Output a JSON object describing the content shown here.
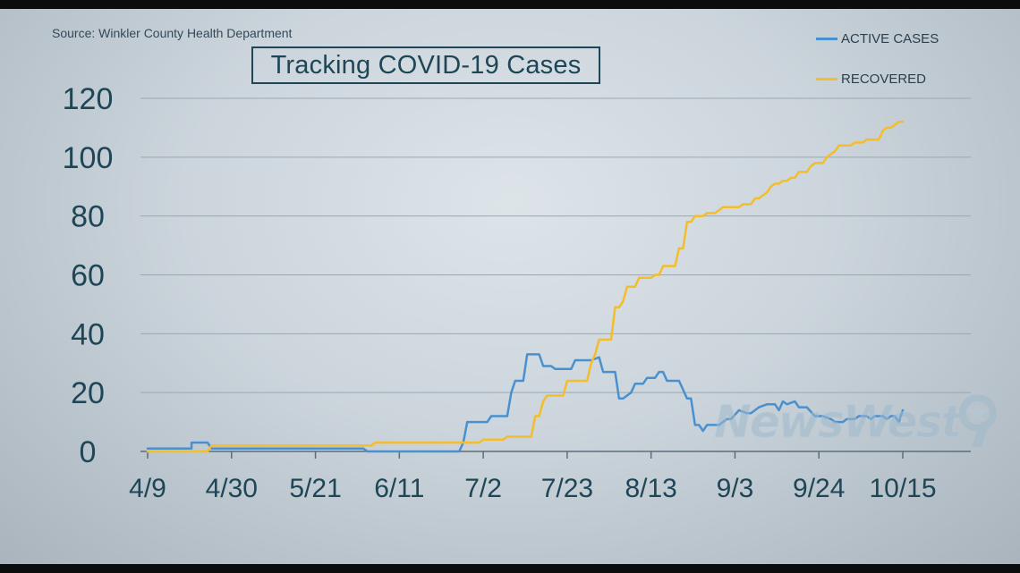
{
  "source": "Source: Winkler County Health Department",
  "watermark": "NewsWest",
  "chart_data": {
    "type": "line",
    "title": "Tracking COVID-19 Cases",
    "xlabel": "",
    "ylabel": "",
    "x_start": "4/9",
    "ylim": [
      0,
      120
    ],
    "yticks": [
      0,
      20,
      40,
      60,
      80,
      100,
      120
    ],
    "xticks": [
      {
        "label": "4/9",
        "day": 0
      },
      {
        "label": "4/30",
        "day": 21
      },
      {
        "label": "5/21",
        "day": 42
      },
      {
        "label": "6/11",
        "day": 63
      },
      {
        "label": "7/2",
        "day": 84
      },
      {
        "label": "7/23",
        "day": 105
      },
      {
        "label": "8/13",
        "day": 126
      },
      {
        "label": "9/3",
        "day": 147
      },
      {
        "label": "9/24",
        "day": 168
      },
      {
        "label": "10/15",
        "day": 189
      }
    ],
    "grid": true,
    "legend_position": "top-right",
    "series": [
      {
        "name": "ACTIVE CASES",
        "color": "#4a90cf",
        "points": [
          [
            0,
            1
          ],
          [
            11,
            1
          ],
          [
            11,
            3
          ],
          [
            15,
            3
          ],
          [
            16,
            1
          ],
          [
            22,
            1
          ],
          [
            54,
            1
          ],
          [
            55,
            0
          ],
          [
            78,
            0
          ],
          [
            79,
            3
          ],
          [
            80,
            10
          ],
          [
            85,
            10
          ],
          [
            86,
            12
          ],
          [
            90,
            12
          ],
          [
            91,
            20
          ],
          [
            92,
            24
          ],
          [
            94,
            24
          ],
          [
            95,
            33
          ],
          [
            98,
            33
          ],
          [
            99,
            29
          ],
          [
            101,
            29
          ],
          [
            102,
            28
          ],
          [
            106,
            28
          ],
          [
            107,
            31
          ],
          [
            111,
            31
          ],
          [
            113,
            32
          ],
          [
            114,
            27
          ],
          [
            117,
            27
          ],
          [
            118,
            18
          ],
          [
            119,
            18
          ],
          [
            121,
            20
          ],
          [
            122,
            23
          ],
          [
            124,
            23
          ],
          [
            125,
            25
          ],
          [
            127,
            25
          ],
          [
            128,
            27
          ],
          [
            129,
            27
          ],
          [
            130,
            24
          ],
          [
            133,
            24
          ],
          [
            135,
            18
          ],
          [
            136,
            18
          ],
          [
            137,
            9
          ],
          [
            138,
            9
          ],
          [
            139,
            7
          ],
          [
            140,
            9
          ],
          [
            143,
            9
          ],
          [
            145,
            11
          ],
          [
            146,
            11
          ],
          [
            148,
            14
          ],
          [
            150,
            13
          ],
          [
            151,
            13
          ],
          [
            153,
            15
          ],
          [
            155,
            16
          ],
          [
            157,
            16
          ],
          [
            158,
            14
          ],
          [
            159,
            17
          ],
          [
            160,
            16
          ],
          [
            162,
            17
          ],
          [
            163,
            15
          ],
          [
            165,
            15
          ],
          [
            167,
            12
          ],
          [
            169,
            12
          ],
          [
            171,
            11
          ],
          [
            172,
            10
          ],
          [
            174,
            10
          ],
          [
            175,
            11
          ],
          [
            177,
            11
          ],
          [
            178,
            12
          ],
          [
            180,
            12
          ],
          [
            181,
            11
          ],
          [
            182,
            12
          ],
          [
            184,
            12
          ],
          [
            185,
            11
          ],
          [
            186,
            12
          ],
          [
            187,
            12
          ],
          [
            188,
            10
          ],
          [
            189,
            14
          ]
        ]
      },
      {
        "name": "RECOVERED",
        "color": "#f3bd2c",
        "points": [
          [
            0,
            0
          ],
          [
            15,
            0
          ],
          [
            16,
            2
          ],
          [
            56,
            2
          ],
          [
            57,
            3
          ],
          [
            77,
            3
          ],
          [
            83,
            3
          ],
          [
            84,
            4
          ],
          [
            89,
            4
          ],
          [
            90,
            5
          ],
          [
            96,
            5
          ],
          [
            97,
            12
          ],
          [
            98,
            12
          ],
          [
            99,
            17
          ],
          [
            100,
            19
          ],
          [
            104,
            19
          ],
          [
            105,
            24
          ],
          [
            110,
            24
          ],
          [
            111,
            30
          ],
          [
            112,
            33
          ],
          [
            113,
            38
          ],
          [
            116,
            38
          ],
          [
            117,
            49
          ],
          [
            118,
            49
          ],
          [
            119,
            51
          ],
          [
            120,
            56
          ],
          [
            122,
            56
          ],
          [
            123,
            59
          ],
          [
            126,
            59
          ],
          [
            127,
            60
          ],
          [
            128,
            60
          ],
          [
            129,
            63
          ],
          [
            132,
            63
          ],
          [
            133,
            69
          ],
          [
            134,
            69
          ],
          [
            135,
            78
          ],
          [
            136,
            78
          ],
          [
            137,
            80
          ],
          [
            139,
            80
          ],
          [
            140,
            81
          ],
          [
            142,
            81
          ],
          [
            143,
            82
          ],
          [
            144,
            83
          ],
          [
            148,
            83
          ],
          [
            149,
            84
          ],
          [
            151,
            84
          ],
          [
            152,
            86
          ],
          [
            153,
            86
          ],
          [
            154,
            87
          ],
          [
            155,
            88
          ],
          [
            156,
            90
          ],
          [
            157,
            91
          ],
          [
            158,
            91
          ],
          [
            159,
            92
          ],
          [
            160,
            92
          ],
          [
            161,
            93
          ],
          [
            162,
            93
          ],
          [
            163,
            95
          ],
          [
            165,
            95
          ],
          [
            166,
            97
          ],
          [
            167,
            98
          ],
          [
            169,
            98
          ],
          [
            170,
            100
          ],
          [
            171,
            101
          ],
          [
            172,
            102
          ],
          [
            173,
            104
          ],
          [
            176,
            104
          ],
          [
            177,
            105
          ],
          [
            179,
            105
          ],
          [
            180,
            106
          ],
          [
            183,
            106
          ],
          [
            184,
            109
          ],
          [
            185,
            110
          ],
          [
            186,
            110
          ],
          [
            187,
            111
          ],
          [
            188,
            112
          ],
          [
            189,
            112
          ]
        ]
      }
    ]
  }
}
